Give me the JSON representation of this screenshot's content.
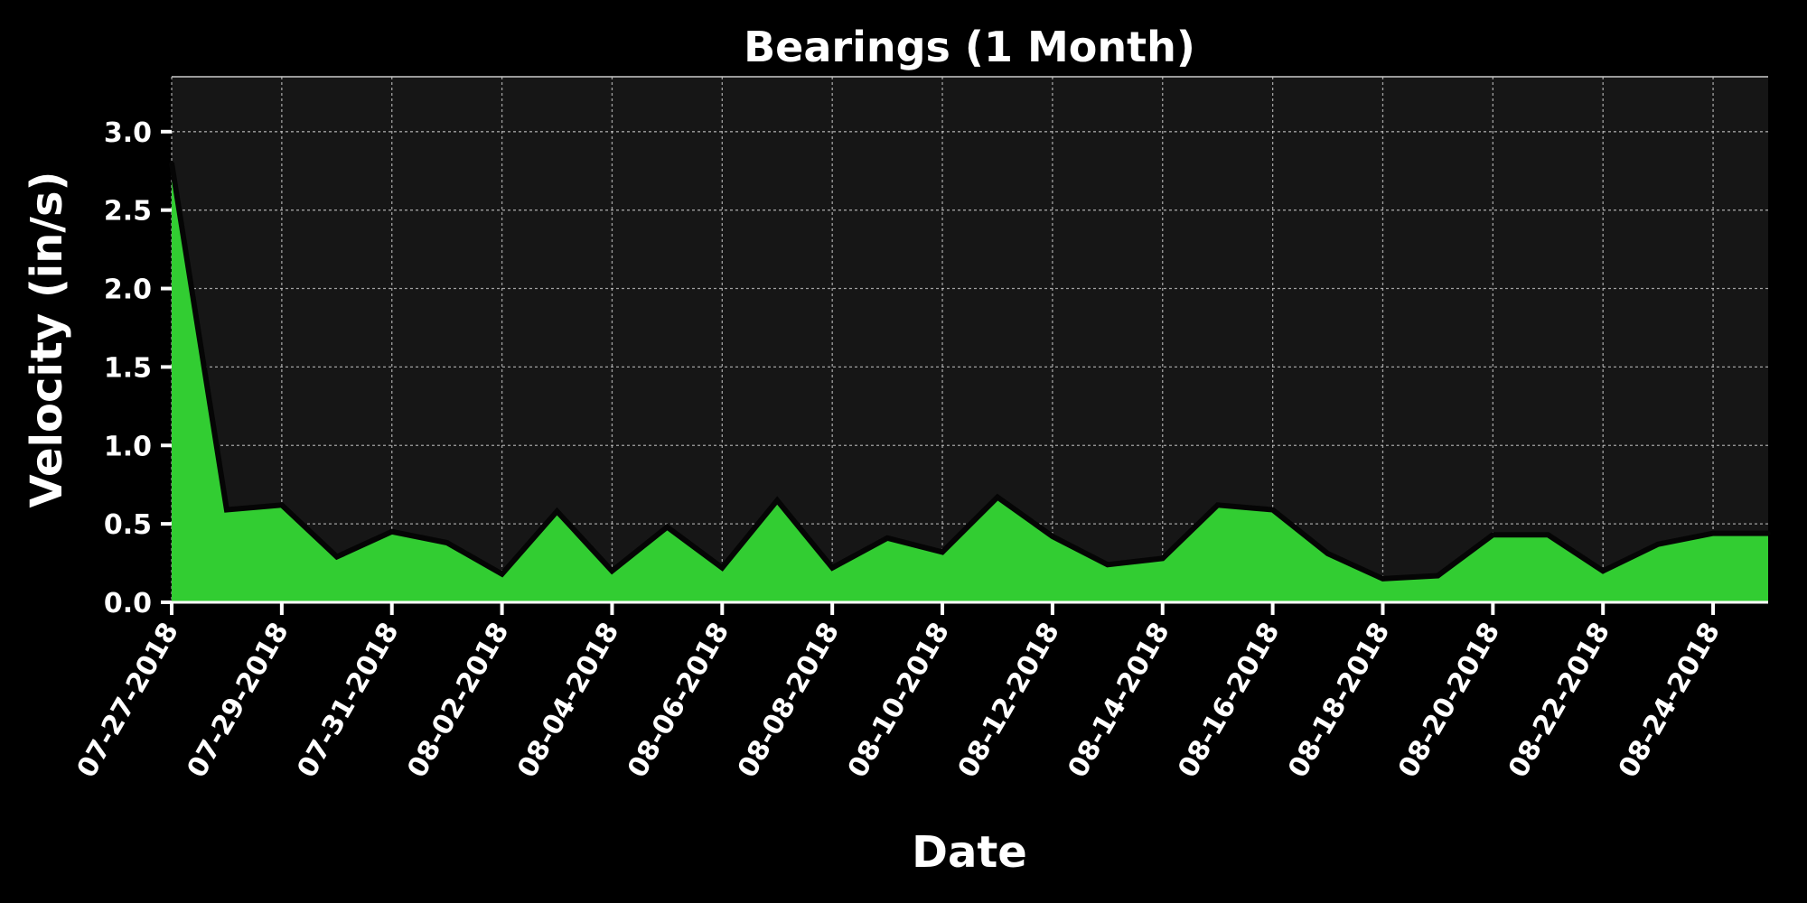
{
  "chart_data": {
    "type": "area",
    "title": "Bearings (1 Month)",
    "xlabel": "Date",
    "ylabel": "Velocity (in/s)",
    "ylim": [
      0,
      3.35
    ],
    "yticks": [
      "0.0",
      "0.5",
      "1.0",
      "1.5",
      "2.0",
      "2.5",
      "3.0"
    ],
    "yticks_values": [
      0,
      0.5,
      1.0,
      1.5,
      2.0,
      2.5,
      3.0
    ],
    "xlim": [
      "07-27-2018",
      "08-25-2018"
    ],
    "xticks": [
      "07-27-2018",
      "07-29-2018",
      "07-31-2018",
      "08-02-2018",
      "08-04-2018",
      "08-06-2018",
      "08-08-2018",
      "08-10-2018",
      "08-12-2018",
      "08-14-2018",
      "08-16-2018",
      "08-18-2018",
      "08-20-2018",
      "08-22-2018",
      "08-24-2018"
    ],
    "grid": true,
    "x": [
      "07-27-2018",
      "07-28-2018",
      "07-29-2018",
      "07-30-2018",
      "07-31-2018",
      "08-01-2018",
      "08-02-2018",
      "08-03-2018",
      "08-04-2018",
      "08-05-2018",
      "08-06-2018",
      "08-07-2018",
      "08-08-2018",
      "08-09-2018",
      "08-10-2018",
      "08-11-2018",
      "08-12-2018",
      "08-13-2018",
      "08-14-2018",
      "08-15-2018",
      "08-16-2018",
      "08-17-2018",
      "08-18-2018",
      "08-19-2018",
      "08-20-2018",
      "08-21-2018",
      "08-22-2018",
      "08-23-2018",
      "08-24-2018",
      "08-25-2018"
    ],
    "series": [
      {
        "values": [
          2.8,
          0.59,
          0.62,
          0.29,
          0.45,
          0.38,
          0.18,
          0.58,
          0.2,
          0.48,
          0.22,
          0.65,
          0.22,
          0.41,
          0.32,
          0.67,
          0.42,
          0.24,
          0.28,
          0.62,
          0.59,
          0.31,
          0.15,
          0.17,
          0.43,
          0.43,
          0.2,
          0.37,
          0.44,
          0.44
        ],
        "fill_color": "#32cd32",
        "line_color": "#050505"
      }
    ],
    "colors": {
      "background": "#000000",
      "plot_background": "#161616",
      "area": "#32cd32",
      "line": "#050505",
      "text": "#ffffff"
    }
  }
}
